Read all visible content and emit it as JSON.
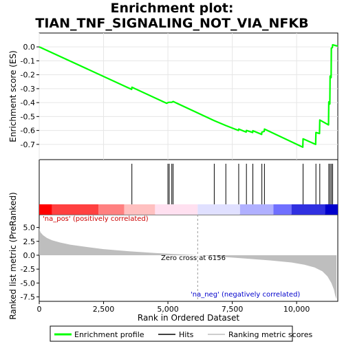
{
  "title_line1": "Enrichment plot:",
  "title_line2": "TIAN_TNF_SIGNALING_NOT_VIA_NFKB",
  "chart_data": {
    "type": "line",
    "title": "Enrichment plot: TIAN_TNF_SIGNALING_NOT_VIA_NFKB",
    "xlabel": "Rank in Ordered Dataset",
    "ylabel_top": "Enrichment score (ES)",
    "ylabel_bottom": "Ranked list metric (PreRanked)",
    "xlim": [
      0,
      11600
    ],
    "es_ylim": [
      -0.76,
      0.05
    ],
    "metric_ylim": [
      -8.3,
      7.3
    ],
    "x_ticks": [
      0,
      2500,
      5000,
      7500,
      10000
    ],
    "x_tick_labels": [
      "0",
      "2,500",
      "5,000",
      "7,500",
      "10,000"
    ],
    "es_ticks": [
      0.0,
      -0.1,
      -0.2,
      -0.3,
      -0.4,
      -0.5,
      -0.6,
      -0.7
    ],
    "es_tick_labels": [
      "0.0",
      "-0.1",
      "-0.2",
      "-0.3",
      "-0.4",
      "-0.5",
      "-0.6",
      "-0.7"
    ],
    "metric_ticks": [
      5.0,
      2.5,
      0.0,
      -2.5,
      -5.0,
      -7.5
    ],
    "metric_tick_labels": [
      "5.0",
      "2.5",
      "0.0",
      "-2.5",
      "-5.0",
      "-7.5"
    ],
    "hits": [
      3600,
      5000,
      5050,
      5150,
      5200,
      6800,
      7250,
      7750,
      8050,
      8300,
      8650,
      8750,
      10250,
      10750,
      10900,
      11250,
      11300,
      11350,
      11400
    ],
    "es_profile": {
      "x": [
        0,
        3590,
        3600,
        4950,
        5000,
        5050,
        5150,
        5200,
        6800,
        7250,
        7740,
        7750,
        8040,
        8050,
        8290,
        8300,
        8640,
        8650,
        8740,
        8750,
        10240,
        10250,
        10740,
        10750,
        10890,
        10900,
        11240,
        11250,
        11290,
        11300,
        11340,
        11350,
        11390,
        11400,
        11600
      ],
      "y": [
        0.0,
        -0.305,
        -0.29,
        -0.405,
        -0.4,
        -0.398,
        -0.398,
        -0.392,
        -0.53,
        -0.565,
        -0.6,
        -0.59,
        -0.612,
        -0.6,
        -0.615,
        -0.602,
        -0.628,
        -0.612,
        -0.607,
        -0.59,
        -0.72,
        -0.66,
        -0.7,
        -0.615,
        -0.622,
        -0.525,
        -0.56,
        -0.395,
        -0.41,
        -0.21,
        -0.22,
        -0.01,
        -0.005,
        0.015,
        0.005
      ]
    },
    "metric_profile": {
      "x": [
        0,
        50,
        150,
        300,
        500,
        800,
        1200,
        1800,
        2500,
        3500,
        4500,
        5500,
        6156,
        7000,
        8000,
        9000,
        9800,
        10300,
        10700,
        11000,
        11200,
        11350,
        11450,
        11500,
        11550
      ],
      "y": [
        4.8,
        4.1,
        3.6,
        3.1,
        2.7,
        2.3,
        1.9,
        1.5,
        1.1,
        0.7,
        0.4,
        0.15,
        0.0,
        -0.25,
        -0.6,
        -0.95,
        -1.3,
        -1.7,
        -2.2,
        -2.9,
        -3.8,
        -5.0,
        -6.2,
        -7.3,
        -7.9
      ]
    },
    "ranked_bar_colors": [
      "#ff0000",
      "#ff4040",
      "#ff8080",
      "#ffc0c0",
      "#ffe0f0",
      "#e0e0ff",
      "#b0b0ff",
      "#7070ff",
      "#3030e0",
      "#0000cc"
    ],
    "legend_pos_label": "'na_pos' (positively correlated)",
    "legend_neg_label": "'na_neg' (negatively correlated)",
    "zero_cross_label": "Zero cross at 6156",
    "zero_cross_x": 6156,
    "legend": [
      "Enrichment profile",
      "Hits",
      "Ranking metric scores"
    ],
    "colors": {
      "es_line": "#00ff00",
      "hit_line": "#000000",
      "metric_fill": "#bebebe",
      "pos_text": "#cc0000",
      "neg_text": "#0000cc"
    }
  }
}
